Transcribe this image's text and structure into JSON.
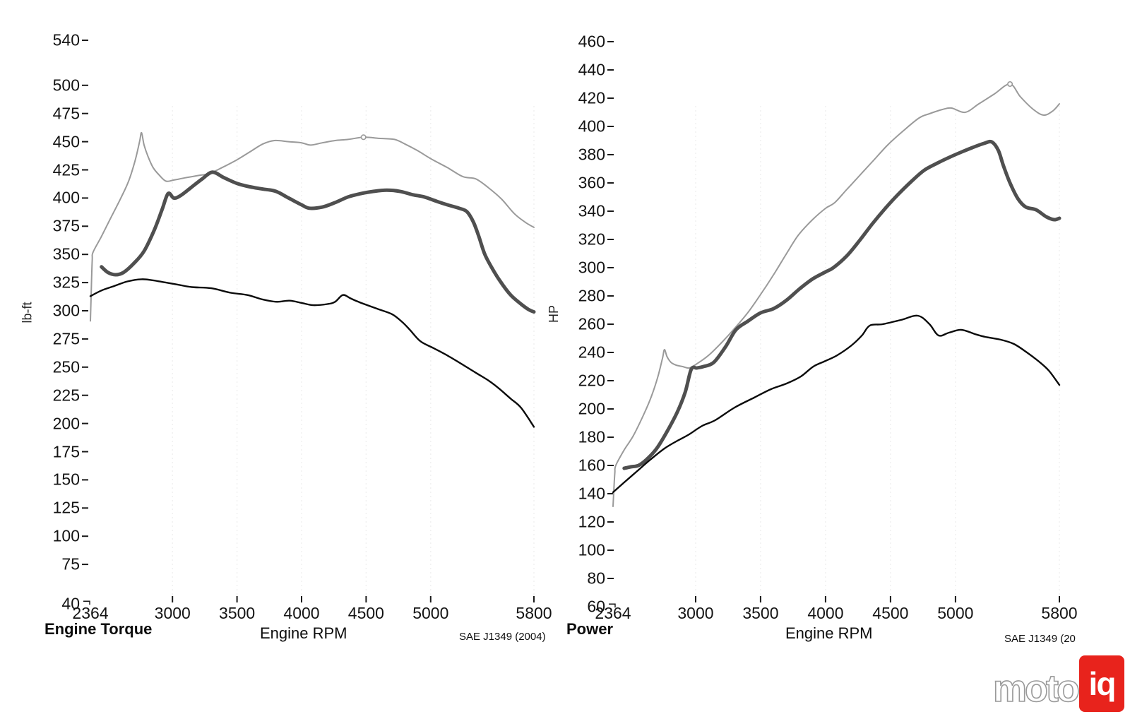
{
  "branding": {
    "logo_text_moto": "moto",
    "logo_text_iq": "iq",
    "logo_red": "#e8231c"
  },
  "chart_data": [
    {
      "type": "line",
      "title": "Engine Torque",
      "xlabel": "Engine RPM",
      "ylabel": "lb-ft",
      "annotation": "SAE J1349 (2004)",
      "origin_mark": "¬",
      "legend": "none",
      "grid": "faint-vertical-at-xticks",
      "xlim": [
        2364,
        5800
      ],
      "ylim": [
        40,
        540
      ],
      "x_ticks": [
        2364,
        3000,
        3500,
        4000,
        4500,
        5000,
        5800
      ],
      "y_ticks": [
        540,
        500,
        475,
        450,
        425,
        400,
        375,
        350,
        325,
        300,
        275,
        250,
        225,
        200,
        175,
        150,
        125,
        100,
        75,
        40
      ],
      "series": [
        {
          "name": "run-light-gray",
          "color": "#9a9a9a",
          "width": 2,
          "marker_point": [
            4480,
            454
          ],
          "points": [
            [
              2364,
              291
            ],
            [
              2370,
              315
            ],
            [
              2378,
              345
            ],
            [
              2385,
              352
            ],
            [
              2450,
              366
            ],
            [
              2520,
              382
            ],
            [
              2600,
              400
            ],
            [
              2660,
              415
            ],
            [
              2710,
              433
            ],
            [
              2745,
              450
            ],
            [
              2760,
              458
            ],
            [
              2780,
              447
            ],
            [
              2810,
              437
            ],
            [
              2850,
              427
            ],
            [
              2900,
              420
            ],
            [
              2950,
              415
            ],
            [
              3010,
              416
            ],
            [
              3100,
              418
            ],
            [
              3200,
              420
            ],
            [
              3290,
              422
            ],
            [
              3400,
              428
            ],
            [
              3500,
              434
            ],
            [
              3600,
              441
            ],
            [
              3700,
              448
            ],
            [
              3790,
              451
            ],
            [
              3900,
              450
            ],
            [
              4000,
              449
            ],
            [
              4070,
              447
            ],
            [
              4160,
              449
            ],
            [
              4260,
              451
            ],
            [
              4360,
              452
            ],
            [
              4480,
              454
            ],
            [
              4600,
              453
            ],
            [
              4720,
              452
            ],
            [
              4800,
              448
            ],
            [
              4900,
              442
            ],
            [
              5000,
              435
            ],
            [
              5130,
              427
            ],
            [
              5250,
              419
            ],
            [
              5350,
              417
            ],
            [
              5450,
              409
            ],
            [
              5550,
              399
            ],
            [
              5650,
              386
            ],
            [
              5740,
              378
            ],
            [
              5800,
              374
            ]
          ]
        },
        {
          "name": "run-dark-gray-thick",
          "color": "#4f4f4f",
          "width": 5,
          "marker_point": null,
          "points": [
            [
              2450,
              339
            ],
            [
              2500,
              334
            ],
            [
              2560,
              332
            ],
            [
              2620,
              334
            ],
            [
              2700,
              342
            ],
            [
              2780,
              353
            ],
            [
              2860,
              372
            ],
            [
              2920,
              390
            ],
            [
              2966,
              404
            ],
            [
              3010,
              400
            ],
            [
              3060,
              402
            ],
            [
              3140,
              409
            ],
            [
              3230,
              417
            ],
            [
              3310,
              423
            ],
            [
              3400,
              418
            ],
            [
              3500,
              413
            ],
            [
              3600,
              410
            ],
            [
              3700,
              408
            ],
            [
              3800,
              406
            ],
            [
              3900,
              400
            ],
            [
              4000,
              394
            ],
            [
              4060,
              391
            ],
            [
              4160,
              392
            ],
            [
              4260,
              396
            ],
            [
              4360,
              401
            ],
            [
              4460,
              404
            ],
            [
              4560,
              406
            ],
            [
              4660,
              407
            ],
            [
              4760,
              406
            ],
            [
              4860,
              403
            ],
            [
              4950,
              401
            ],
            [
              5050,
              397
            ],
            [
              5130,
              394
            ],
            [
              5220,
              391
            ],
            [
              5280,
              388
            ],
            [
              5330,
              379
            ],
            [
              5370,
              367
            ],
            [
              5420,
              350
            ],
            [
              5480,
              337
            ],
            [
              5540,
              326
            ],
            [
              5620,
              314
            ],
            [
              5700,
              306
            ],
            [
              5760,
              301
            ],
            [
              5800,
              299
            ]
          ]
        },
        {
          "name": "run-black",
          "color": "#0b0b0b",
          "width": 2.4,
          "marker_point": null,
          "points": [
            [
              2364,
              313
            ],
            [
              2450,
              318
            ],
            [
              2550,
              322
            ],
            [
              2650,
              326
            ],
            [
              2760,
              328
            ],
            [
              2850,
              327
            ],
            [
              2950,
              325
            ],
            [
              3050,
              323
            ],
            [
              3150,
              321
            ],
            [
              3300,
              320
            ],
            [
              3450,
              316
            ],
            [
              3580,
              314
            ],
            [
              3700,
              310
            ],
            [
              3810,
              308
            ],
            [
              3906,
              309
            ],
            [
              4000,
              307
            ],
            [
              4090,
              305
            ],
            [
              4200,
              306
            ],
            [
              4260,
              308
            ],
            [
              4320,
              314
            ],
            [
              4380,
              311
            ],
            [
              4440,
              308
            ],
            [
              4580,
              302
            ],
            [
              4700,
              297
            ],
            [
              4780,
              290
            ],
            [
              4840,
              283
            ],
            [
              4920,
              273
            ],
            [
              5020,
              267
            ],
            [
              5150,
              259
            ],
            [
              5350,
              245
            ],
            [
              5450,
              238
            ],
            [
              5530,
              231
            ],
            [
              5620,
              222
            ],
            [
              5700,
              214
            ],
            [
              5800,
              197
            ]
          ]
        }
      ]
    },
    {
      "type": "line",
      "title": "Power",
      "xlabel": "Engine RPM",
      "ylabel": "HP",
      "annotation": "SAE J1349 (20",
      "origin_mark": "¬",
      "legend": "none",
      "grid": "faint-vertical-at-xticks",
      "xlim": [
        2364,
        5800
      ],
      "ylim": [
        60,
        460
      ],
      "x_ticks": [
        2364,
        3000,
        3500,
        4000,
        4500,
        5000,
        5800
      ],
      "y_ticks": [
        460,
        440,
        420,
        400,
        380,
        360,
        340,
        320,
        300,
        280,
        260,
        240,
        220,
        200,
        180,
        160,
        140,
        120,
        100,
        80,
        60
      ],
      "series": [
        {
          "name": "run-light-gray",
          "color": "#9a9a9a",
          "width": 2,
          "marker_point": [
            5420,
            430
          ],
          "points": [
            [
              2364,
              131
            ],
            [
              2370,
              142
            ],
            [
              2378,
              155
            ],
            [
              2385,
              160
            ],
            [
              2450,
              171
            ],
            [
              2520,
              181
            ],
            [
              2600,
              196
            ],
            [
              2660,
              209
            ],
            [
              2710,
              223
            ],
            [
              2745,
              236
            ],
            [
              2760,
              242
            ],
            [
              2780,
              237
            ],
            [
              2810,
              233
            ],
            [
              2850,
              231
            ],
            [
              2900,
              230
            ],
            [
              2950,
              229
            ],
            [
              3010,
              232
            ],
            [
              3100,
              238
            ],
            [
              3200,
              247
            ],
            [
              3290,
              256
            ],
            [
              3400,
              268
            ],
            [
              3500,
              281
            ],
            [
              3600,
              295
            ],
            [
              3700,
              310
            ],
            [
              3790,
              323
            ],
            [
              3900,
              334
            ],
            [
              4000,
              342
            ],
            [
              4070,
              346
            ],
            [
              4160,
              355
            ],
            [
              4260,
              365
            ],
            [
              4360,
              375
            ],
            [
              4480,
              387
            ],
            [
              4600,
              397
            ],
            [
              4720,
              406
            ],
            [
              4800,
              409
            ],
            [
              4900,
              412
            ],
            [
              4970,
              413
            ],
            [
              5075,
              410
            ],
            [
              5180,
              416
            ],
            [
              5300,
              423
            ],
            [
              5420,
              430
            ],
            [
              5500,
              421
            ],
            [
              5600,
              412
            ],
            [
              5680,
              408
            ],
            [
              5750,
              411
            ],
            [
              5800,
              416
            ]
          ]
        },
        {
          "name": "run-dark-gray-thick",
          "color": "#4f4f4f",
          "width": 5,
          "marker_point": null,
          "points": [
            [
              2450,
              158
            ],
            [
              2500,
              159
            ],
            [
              2560,
              160
            ],
            [
              2620,
              164
            ],
            [
              2700,
              172
            ],
            [
              2780,
              184
            ],
            [
              2860,
              198
            ],
            [
              2920,
              212
            ],
            [
              2966,
              228
            ],
            [
              3010,
              229
            ],
            [
              3060,
              230
            ],
            [
              3140,
              233
            ],
            [
              3230,
              244
            ],
            [
              3310,
              256
            ],
            [
              3400,
              262
            ],
            [
              3500,
              268
            ],
            [
              3600,
              271
            ],
            [
              3700,
              277
            ],
            [
              3800,
              285
            ],
            [
              3900,
              292
            ],
            [
              4000,
              297
            ],
            [
              4060,
              300
            ],
            [
              4160,
              308
            ],
            [
              4260,
              319
            ],
            [
              4360,
              331
            ],
            [
              4460,
              342
            ],
            [
              4560,
              352
            ],
            [
              4660,
              361
            ],
            [
              4760,
              369
            ],
            [
              4860,
              374
            ],
            [
              4950,
              378
            ],
            [
              5050,
              382
            ],
            [
              5130,
              385
            ],
            [
              5220,
              388
            ],
            [
              5280,
              389
            ],
            [
              5330,
              383
            ],
            [
              5370,
              372
            ],
            [
              5420,
              360
            ],
            [
              5480,
              349
            ],
            [
              5540,
              343
            ],
            [
              5620,
              341
            ],
            [
              5700,
              336
            ],
            [
              5760,
              334
            ],
            [
              5800,
              335
            ]
          ]
        },
        {
          "name": "run-black",
          "color": "#0b0b0b",
          "width": 2.4,
          "marker_point": null,
          "points": [
            [
              2364,
              141
            ],
            [
              2450,
              148
            ],
            [
              2550,
              156
            ],
            [
              2650,
              164
            ],
            [
              2760,
              172
            ],
            [
              2850,
              177
            ],
            [
              2950,
              182
            ],
            [
              3050,
              188
            ],
            [
              3150,
              192
            ],
            [
              3300,
              201
            ],
            [
              3450,
              208
            ],
            [
              3580,
              214
            ],
            [
              3700,
              218
            ],
            [
              3810,
              223
            ],
            [
              3906,
              230
            ],
            [
              4000,
              234
            ],
            [
              4090,
              238
            ],
            [
              4200,
              245
            ],
            [
              4280,
              252
            ],
            [
              4340,
              259
            ],
            [
              4440,
              260
            ],
            [
              4580,
              263
            ],
            [
              4710,
              266
            ],
            [
              4800,
              260
            ],
            [
              4870,
              252
            ],
            [
              4950,
              254
            ],
            [
              5045,
              256
            ],
            [
              5150,
              253
            ],
            [
              5230,
              251
            ],
            [
              5350,
              249
            ],
            [
              5450,
              246
            ],
            [
              5550,
              240
            ],
            [
              5650,
              233
            ],
            [
              5720,
              227
            ],
            [
              5800,
              217
            ]
          ]
        }
      ]
    }
  ]
}
